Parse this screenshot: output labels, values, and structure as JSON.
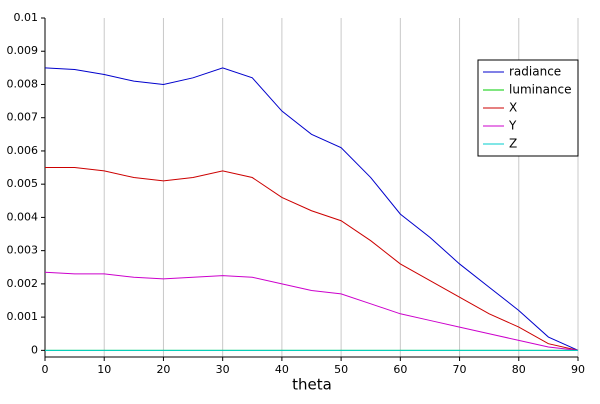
{
  "chart_data": {
    "type": "line",
    "x": [
      0,
      5,
      10,
      15,
      20,
      25,
      30,
      35,
      40,
      45,
      50,
      55,
      60,
      65,
      70,
      75,
      80,
      85,
      90
    ],
    "xlabel": "theta",
    "series": [
      {
        "name": "radiance",
        "color": "#0000cc",
        "values": [
          0.0085,
          0.00845,
          0.0083,
          0.0081,
          0.008,
          0.0082,
          0.0085,
          0.0082,
          0.0072,
          0.0065,
          0.0061,
          0.0052,
          0.0041,
          0.0034,
          0.0026,
          0.0019,
          0.0012,
          0.0004,
          0
        ]
      },
      {
        "name": "luminance",
        "color": "#00cc00",
        "values": [
          0,
          0,
          0,
          0,
          0,
          0,
          0,
          0,
          0,
          0,
          0,
          0,
          0,
          0,
          0,
          0,
          0,
          0,
          0
        ]
      },
      {
        "name": "X",
        "color": "#cc0000",
        "values": [
          0.0055,
          0.0055,
          0.0054,
          0.0052,
          0.0051,
          0.0052,
          0.0054,
          0.0052,
          0.0046,
          0.0042,
          0.0039,
          0.0033,
          0.0026,
          0.0021,
          0.0016,
          0.0011,
          0.0007,
          0.0002,
          0
        ]
      },
      {
        "name": "Y",
        "color": "#cc00cc",
        "values": [
          0.00235,
          0.0023,
          0.0023,
          0.0022,
          0.00215,
          0.0022,
          0.00225,
          0.0022,
          0.002,
          0.0018,
          0.0017,
          0.0014,
          0.0011,
          0.0009,
          0.0007,
          0.0005,
          0.0003,
          0.0001,
          0
        ]
      },
      {
        "name": "Z",
        "color": "#00cccc",
        "values": [
          0,
          0,
          0,
          0,
          0,
          0,
          0,
          0,
          0,
          0,
          0,
          0,
          0,
          0,
          0,
          0,
          0,
          0,
          0
        ]
      }
    ],
    "xlim": [
      0,
      90
    ],
    "xticks": [
      0,
      10,
      20,
      30,
      40,
      50,
      60,
      70,
      80,
      90
    ],
    "ylim": [
      -0.0002,
      0.01
    ],
    "yticks": [
      0,
      0.001,
      0.002,
      0.003,
      0.004,
      0.005,
      0.006,
      0.007,
      0.008,
      0.009,
      0.01
    ],
    "grid": true,
    "legend": "upper-right"
  }
}
